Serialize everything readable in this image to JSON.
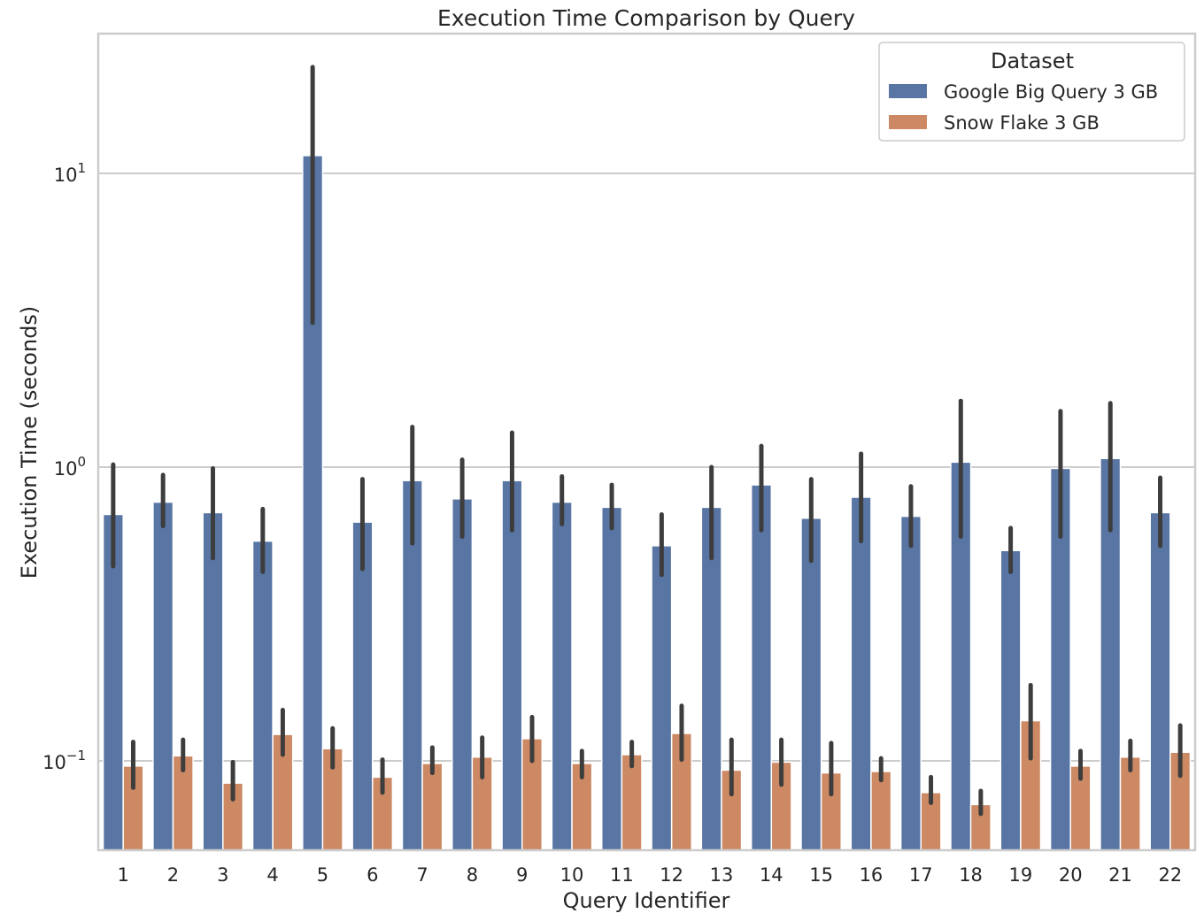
{
  "chart_data": {
    "type": "bar",
    "title": "Execution Time Comparison by Query",
    "xlabel": "Query Identifier",
    "ylabel": "Execution Time (seconds)",
    "yscale": "log",
    "ylim": [
      0.05,
      30
    ],
    "yticks": [
      {
        "value": 10,
        "base": "10",
        "exp": "1"
      },
      {
        "value": 1,
        "base": "10",
        "exp": "0"
      },
      {
        "value": 0.1,
        "base": "10",
        "exp": "−1"
      }
    ],
    "grid": "horizontal",
    "legend": {
      "title": "Dataset",
      "position": "top-right"
    },
    "categories": [
      "1",
      "2",
      "3",
      "4",
      "5",
      "6",
      "7",
      "8",
      "9",
      "10",
      "11",
      "12",
      "13",
      "14",
      "15",
      "16",
      "17",
      "18",
      "19",
      "20",
      "21",
      "22"
    ],
    "series": [
      {
        "name": "Google Big Query 3 GB",
        "color": "#5875a4",
        "values": [
          0.69,
          0.76,
          0.7,
          0.56,
          11.5,
          0.65,
          0.9,
          0.78,
          0.9,
          0.76,
          0.73,
          0.54,
          0.73,
          0.87,
          0.67,
          0.79,
          0.68,
          1.04,
          0.52,
          0.99,
          1.07,
          0.7
        ],
        "ci_low": [
          0.46,
          0.63,
          0.49,
          0.44,
          3.1,
          0.45,
          0.55,
          0.58,
          0.61,
          0.64,
          0.62,
          0.43,
          0.49,
          0.61,
          0.48,
          0.56,
          0.54,
          0.58,
          0.44,
          0.58,
          0.61,
          0.54
        ],
        "ci_high": [
          1.02,
          0.94,
          0.99,
          0.72,
          23.0,
          0.91,
          1.37,
          1.06,
          1.31,
          0.93,
          0.87,
          0.69,
          1.0,
          1.18,
          0.91,
          1.11,
          0.86,
          1.68,
          0.62,
          1.55,
          1.65,
          0.92
        ]
      },
      {
        "name": "Snow Flake 3 GB",
        "color": "#cc8963",
        "values": [
          0.096,
          0.104,
          0.084,
          0.123,
          0.11,
          0.088,
          0.098,
          0.103,
          0.119,
          0.098,
          0.105,
          0.124,
          0.093,
          0.099,
          0.091,
          0.092,
          0.078,
          0.071,
          0.137,
          0.096,
          0.103,
          0.107
        ],
        "ci_low": [
          0.081,
          0.093,
          0.074,
          0.105,
          0.095,
          0.078,
          0.091,
          0.088,
          0.1,
          0.088,
          0.096,
          0.101,
          0.077,
          0.083,
          0.077,
          0.086,
          0.072,
          0.066,
          0.102,
          0.087,
          0.093,
          0.089
        ],
        "ci_high": [
          0.116,
          0.118,
          0.099,
          0.149,
          0.129,
          0.101,
          0.111,
          0.12,
          0.141,
          0.108,
          0.116,
          0.154,
          0.118,
          0.118,
          0.115,
          0.102,
          0.088,
          0.079,
          0.181,
          0.108,
          0.117,
          0.132
        ]
      }
    ]
  }
}
